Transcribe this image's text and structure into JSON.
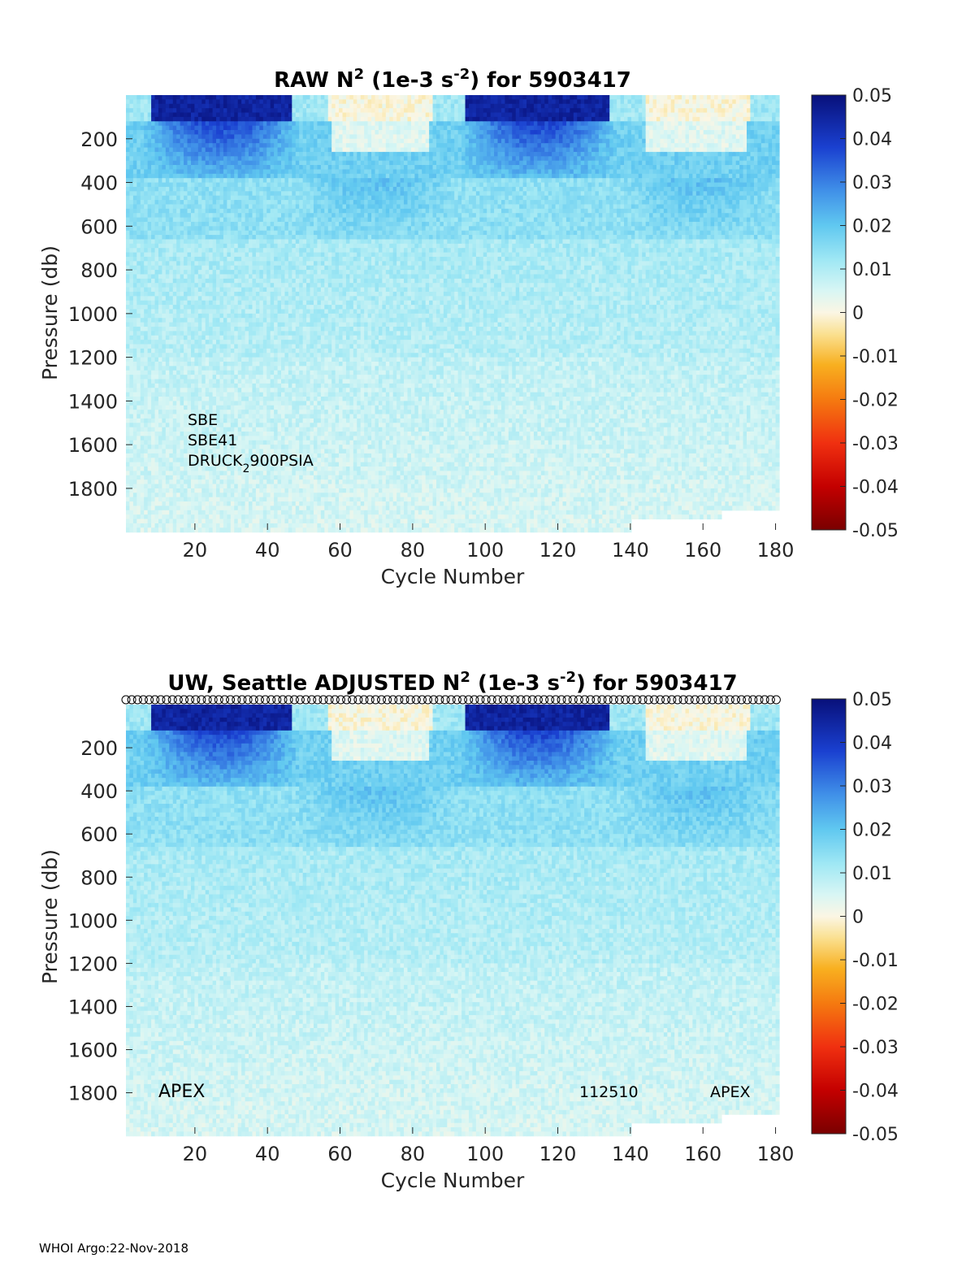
{
  "chart_data": [
    {
      "type": "heatmap",
      "title_main": "RAW N",
      "title_sup": "2",
      "title_mid": " (1e-3 s",
      "title_sup2": "-2",
      "title_end": ") for 5903417",
      "xlabel": "Cycle Number",
      "ylabel": "Pressure (db)",
      "xlim": [
        1,
        181
      ],
      "ylim": [
        1990,
        0
      ],
      "x_ticks": [
        20,
        40,
        60,
        80,
        100,
        120,
        140,
        160,
        180
      ],
      "y_ticks": [
        200,
        400,
        600,
        800,
        1000,
        1200,
        1400,
        1600,
        1800
      ],
      "colorbar": {
        "min": -0.05,
        "max": 0.05,
        "ticks": [
          0.05,
          0.04,
          0.03,
          0.02,
          0.01,
          0,
          -0.01,
          -0.02,
          -0.03,
          -0.04,
          -0.05
        ],
        "colormap": "jet-like with white near zero"
      },
      "annotations": [
        "SBE",
        "SBE41",
        "DRUCK"
      ],
      "annotation_sub": "2",
      "annotation_tail": "900PSIA"
    },
    {
      "type": "heatmap",
      "title_main": "UW, Seattle  ADJUSTED N",
      "title_sup": "2",
      "title_mid": " (1e-3 s",
      "title_sup2": "-2",
      "title_end": ") for 5903417",
      "xlabel": "Cycle Number",
      "ylabel": "Pressure (db)",
      "xlim": [
        1,
        181
      ],
      "ylim": [
        1990,
        0
      ],
      "x_ticks": [
        20,
        40,
        60,
        80,
        100,
        120,
        140,
        160,
        180
      ],
      "y_ticks": [
        200,
        400,
        600,
        800,
        1000,
        1200,
        1400,
        1600,
        1800
      ],
      "colorbar": {
        "min": -0.05,
        "max": 0.05,
        "ticks": [
          0.05,
          0.04,
          0.03,
          0.02,
          0.01,
          0,
          -0.01,
          -0.02,
          -0.03,
          -0.04,
          -0.05
        ],
        "colormap": "jet-like with white near zero"
      },
      "annotations_left": "APEX",
      "annotations_mid": "112510",
      "annotations_right": "APEX",
      "top_markers": "open circles along top axis, one per cycle"
    }
  ],
  "footer": "WHOI Argo:22-Nov-2018",
  "colors": {
    "deep_blue": "#0a1a8c",
    "mid_blue": "#4a7fe0",
    "cyan": "#9fe6f2",
    "pale": "#e8f8f6",
    "zero_cream": "#fbf3d8",
    "orange": "#f5a020",
    "red": "#e0200a",
    "dark_red": "#7a0000"
  }
}
